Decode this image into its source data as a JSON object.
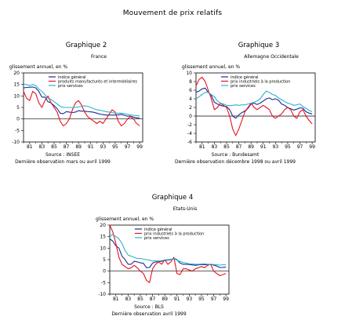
{
  "page_title": "Mouvement de prix relatifs",
  "chart_data": [
    {
      "type": "line",
      "title": "Graphique 2",
      "subtitle": "France",
      "ylabel": "glissement annuel, en %",
      "ylim": [
        -10,
        20
      ],
      "yticks": [
        20,
        15,
        10,
        5,
        0,
        -5,
        -10
      ],
      "xlim": [
        1980,
        1999.5
      ],
      "xticks": [
        1981,
        1983,
        1985,
        1987,
        1989,
        1991,
        1993,
        1995,
        1997,
        1999
      ],
      "xtick_labels": [
        "81",
        "83",
        "85",
        "87",
        "89",
        "91",
        "93",
        "95",
        "97",
        "99"
      ],
      "source": "Source : INSEE",
      "note": "Dernière observation mars ou avril 1999",
      "series": [
        {
          "name": "indice général",
          "color": "#1a2a9c",
          "x": [
            1980,
            1980.5,
            1981,
            1981.5,
            1982,
            1982.5,
            1983,
            1983.5,
            1984,
            1984.5,
            1985,
            1985.5,
            1986,
            1986.5,
            1987,
            1987.5,
            1988,
            1988.5,
            1989,
            1989.5,
            1990,
            1990.5,
            1991,
            1991.5,
            1992,
            1992.5,
            1993,
            1993.5,
            1994,
            1994.5,
            1995,
            1995.5,
            1996,
            1996.5,
            1997,
            1997.5,
            1998,
            1998.5,
            1999
          ],
          "y": [
            13.5,
            13.7,
            13.8,
            13.9,
            13.5,
            12,
            9.5,
            9.5,
            7.5,
            7,
            5.8,
            4.5,
            2.5,
            2.3,
            3.2,
            3,
            2.8,
            3,
            3.6,
            3.4,
            3.4,
            3.2,
            3.1,
            2.9,
            2.5,
            2.1,
            1.9,
            1.7,
            1.7,
            1.7,
            1.7,
            1.8,
            2,
            1.6,
            1.2,
            1.2,
            0.8,
            0.5,
            0.4
          ]
        },
        {
          "name": "produits manufacturés et intermédiaires",
          "color": "#e8101c",
          "x": [
            1980,
            1980.5,
            1981,
            1981.5,
            1982,
            1982.5,
            1983,
            1983.5,
            1984,
            1984.5,
            1985,
            1985.5,
            1986,
            1986.5,
            1987,
            1987.5,
            1988,
            1988.5,
            1989,
            1989.5,
            1990,
            1990.5,
            1991,
            1991.5,
            1992,
            1992.5,
            1993,
            1993.5,
            1994,
            1994.5,
            1995,
            1995.5,
            1996,
            1996.5,
            1997,
            1997.5,
            1998,
            1998.5,
            1999
          ],
          "y": [
            12,
            9,
            8,
            12,
            11,
            7,
            5,
            8,
            10,
            7,
            5,
            3,
            -1,
            -3,
            -2,
            0,
            4,
            7,
            8,
            6,
            3,
            1,
            0,
            -1,
            -2,
            -1,
            -2,
            0,
            2,
            4,
            3,
            -1,
            -3,
            -2,
            0,
            1,
            0,
            -2,
            -3
          ]
        },
        {
          "name": "prix services",
          "color": "#2ab4c8",
          "x": [
            1980,
            1980.5,
            1981,
            1981.5,
            1982,
            1982.5,
            1983,
            1983.5,
            1984,
            1984.5,
            1985,
            1985.5,
            1986,
            1986.5,
            1987,
            1987.5,
            1988,
            1988.5,
            1989,
            1989.5,
            1990,
            1990.5,
            1991,
            1991.5,
            1992,
            1992.5,
            1993,
            1993.5,
            1994,
            1994.5,
            1995,
            1995.5,
            1996,
            1996.5,
            1997,
            1997.5,
            1998,
            1998.5,
            1999
          ],
          "y": [
            15,
            15,
            14.5,
            15,
            14.5,
            13,
            12,
            10.5,
            9,
            8.5,
            7.5,
            6.5,
            5.5,
            5,
            5,
            5,
            5,
            5,
            5.2,
            5.5,
            5.7,
            5.5,
            5,
            4.5,
            4,
            3.8,
            3.5,
            3.2,
            3,
            2.8,
            2.5,
            2.5,
            2.5,
            2.3,
            2,
            1.8,
            1.6,
            1.5,
            1.3
          ]
        }
      ]
    },
    {
      "type": "line",
      "title": "Graphique 3",
      "subtitle": "Allemagne Occidentale",
      "ylabel": "glissement annuel, en %",
      "ylim": [
        -6,
        10
      ],
      "yticks": [
        10,
        8,
        6,
        4,
        2,
        0,
        -2,
        -4,
        -6
      ],
      "xlim": [
        1980,
        1999.5
      ],
      "xticks": [
        1981,
        1983,
        1985,
        1987,
        1989,
        1991,
        1993,
        1995,
        1997,
        1999
      ],
      "xtick_labels": [
        "81",
        "83",
        "85",
        "87",
        "89",
        "91",
        "93",
        "95",
        "97",
        "99"
      ],
      "source": "Source : Bundesamt",
      "note": "Dernière observation décembre 1998 ou avril 1999",
      "series": [
        {
          "name": "indice général",
          "color": "#1a2a9c",
          "x": [
            1980,
            1980.5,
            1981,
            1981.5,
            1982,
            1982.5,
            1983,
            1983.5,
            1984,
            1984.5,
            1985,
            1985.5,
            1986,
            1986.5,
            1987,
            1987.5,
            1988,
            1988.5,
            1989,
            1989.5,
            1990,
            1990.5,
            1991,
            1991.5,
            1992,
            1992.5,
            1993,
            1993.5,
            1994,
            1994.5,
            1995,
            1995.5,
            1996,
            1996.5,
            1997,
            1997.5,
            1998,
            1998.5,
            1999
          ],
          "y": [
            5.5,
            5.8,
            6.3,
            6.5,
            5.5,
            4.8,
            3.2,
            2.8,
            2.5,
            2.3,
            2.2,
            1.5,
            0,
            -0.5,
            0.3,
            0.8,
            1.2,
            1.8,
            2.8,
            3,
            2.7,
            3,
            3.5,
            4,
            4.2,
            3.8,
            4,
            3.7,
            2.8,
            2.5,
            2,
            1.7,
            1.4,
            1.6,
            1.9,
            1.8,
            1,
            0.7,
            0.5
          ]
        },
        {
          "name": "prix industriels à la production",
          "color": "#e8101c",
          "x": [
            1980,
            1980.5,
            1981,
            1981.5,
            1982,
            1982.5,
            1983,
            1983.5,
            1984,
            1984.5,
            1985,
            1985.5,
            1986,
            1986.5,
            1987,
            1987.5,
            1988,
            1988.5,
            1989,
            1989.5,
            1990,
            1990.5,
            1991,
            1991.5,
            1992,
            1992.5,
            1993,
            1993.5,
            1994,
            1994.5,
            1995,
            1995.5,
            1996,
            1996.5,
            1997,
            1997.5,
            1998,
            1998.5,
            1999
          ],
          "y": [
            7,
            8.5,
            9,
            8,
            6,
            4,
            1.5,
            2,
            3,
            2.5,
            2,
            0,
            -3,
            -4.5,
            -3,
            -1,
            1,
            2,
            3,
            2,
            1.5,
            2,
            2.5,
            2,
            1.5,
            0,
            -0.5,
            0,
            0.5,
            1.5,
            2,
            1.5,
            0,
            -0.5,
            1,
            1.5,
            0,
            -1,
            -1.8
          ]
        },
        {
          "name": "prix services",
          "color": "#2ab4c8",
          "x": [
            1980,
            1980.5,
            1981,
            1981.5,
            1982,
            1982.5,
            1983,
            1983.5,
            1984,
            1984.5,
            1985,
            1985.5,
            1986,
            1986.5,
            1987,
            1987.5,
            1988,
            1988.5,
            1989,
            1989.5,
            1990,
            1990.5,
            1991,
            1991.5,
            1992,
            1992.5,
            1993,
            1993.5,
            1994,
            1994.5,
            1995,
            1995.5,
            1996,
            1996.5,
            1997,
            1997.5,
            1998,
            1998.5,
            1999
          ],
          "y": [
            4,
            4.5,
            5,
            5.5,
            5.5,
            5,
            4.5,
            3.5,
            3,
            2.8,
            2.5,
            2.4,
            2.5,
            2.6,
            2.5,
            2.6,
            2.6,
            2.8,
            3,
            3.2,
            3.5,
            4,
            5,
            5.8,
            5.5,
            5,
            4.8,
            4.2,
            3.8,
            3.4,
            3,
            2.8,
            2.5,
            2.6,
            2.8,
            2.2,
            1.8,
            1.3,
            1
          ]
        }
      ]
    },
    {
      "type": "line",
      "title": "Graphique 4",
      "subtitle": "Etats-Unis",
      "ylabel": "glissement annuel, en %",
      "ylim": [
        -10,
        20
      ],
      "yticks": [
        20,
        15,
        10,
        5,
        0,
        -5,
        -10
      ],
      "xlim": [
        1980,
        1999.5
      ],
      "xticks": [
        1981,
        1983,
        1985,
        1987,
        1989,
        1991,
        1993,
        1995,
        1997,
        1999
      ],
      "xtick_labels": [
        "81",
        "83",
        "85",
        "87",
        "89",
        "91",
        "93",
        "95",
        "97",
        "99"
      ],
      "source": "Source : BLS",
      "note": "Dernière observation avril 1999",
      "series": [
        {
          "name": "indice général",
          "color": "#1a2a9c",
          "x": [
            1980,
            1980.5,
            1981,
            1981.5,
            1982,
            1982.5,
            1983,
            1983.5,
            1984,
            1984.5,
            1985,
            1985.5,
            1986,
            1986.5,
            1987,
            1987.5,
            1988,
            1988.5,
            1989,
            1989.5,
            1990,
            1990.5,
            1991,
            1991.5,
            1992,
            1992.5,
            1993,
            1993.5,
            1994,
            1994.5,
            1995,
            1995.5,
            1996,
            1996.5,
            1997,
            1997.5,
            1998,
            1998.5,
            1999
          ],
          "y": [
            14,
            13,
            11,
            10,
            6.5,
            5,
            3,
            3,
            4.3,
            4,
            3.6,
            3.4,
            1.5,
            1.6,
            3.5,
            4,
            4.1,
            4.3,
            4.6,
            4.8,
            5,
            5.5,
            5,
            3.5,
            3,
            3,
            2.9,
            2.7,
            2.5,
            2.7,
            2.9,
            2.8,
            2.8,
            2.9,
            2.6,
            2.2,
            1.6,
            1.6,
            1.8
          ]
        },
        {
          "name": "prix industriels à la production",
          "color": "#e8101c",
          "x": [
            1980,
            1980.5,
            1981,
            1981.5,
            1982,
            1982.5,
            1983,
            1983.5,
            1984,
            1984.5,
            1985,
            1985.5,
            1986,
            1986.5,
            1987,
            1987.5,
            1988,
            1988.5,
            1989,
            1989.5,
            1990,
            1990.5,
            1991,
            1991.5,
            1992,
            1992.5,
            1993,
            1993.5,
            1994,
            1994.5,
            1995,
            1995.5,
            1996,
            1996.5,
            1997,
            1997.5,
            1998,
            1998.5,
            1999
          ],
          "y": [
            20,
            17,
            12,
            6,
            3,
            2,
            1,
            1.5,
            2.5,
            1.5,
            0,
            -1,
            -4,
            -5,
            1,
            3,
            4,
            3,
            5,
            3,
            4,
            6,
            -1,
            -1.5,
            1,
            1,
            0.5,
            0,
            1,
            1.5,
            2,
            1.5,
            2.5,
            3,
            0,
            -1,
            -2,
            -1.5,
            -1
          ]
        },
        {
          "name": "prix services",
          "color": "#2ab4c8",
          "x": [
            1980,
            1980.5,
            1981,
            1981.5,
            1982,
            1982.5,
            1983,
            1983.5,
            1984,
            1984.5,
            1985,
            1985.5,
            1986,
            1986.5,
            1987,
            1987.5,
            1988,
            1988.5,
            1989,
            1989.5,
            1990,
            1990.5,
            1991,
            1991.5,
            1992,
            1992.5,
            1993,
            1993.5,
            1994,
            1994.5,
            1995,
            1995.5,
            1996,
            1996.5,
            1997,
            1997.5,
            1998,
            1998.5,
            1999
          ],
          "y": [
            15,
            16,
            15,
            14,
            12,
            9,
            7,
            6.5,
            6,
            5.5,
            5.5,
            5.2,
            5,
            4.8,
            4.4,
            4.5,
            4.4,
            4.6,
            4.8,
            5,
            5.2,
            5.3,
            4.8,
            4.2,
            3.8,
            3.5,
            3.2,
            3.1,
            3,
            3,
            3.1,
            3.2,
            3,
            3,
            2.9,
            2.8,
            2.6,
            2.8,
            2.7
          ]
        }
      ]
    }
  ]
}
